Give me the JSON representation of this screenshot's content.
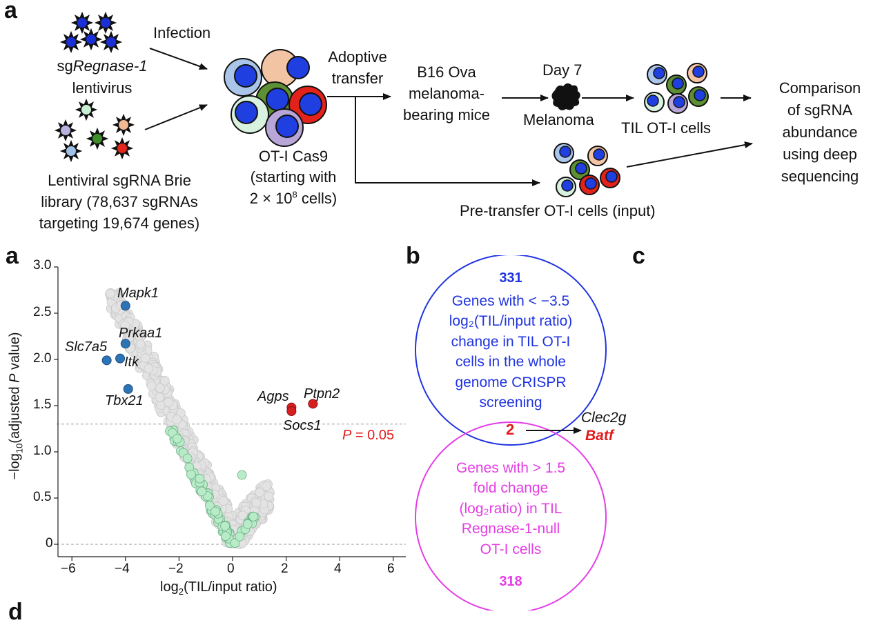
{
  "panel_letters": {
    "top": "a",
    "volcano": "a",
    "venn": "b",
    "right": "c",
    "bottom": "d"
  },
  "schematic": {
    "infection": "Infection",
    "sg_prefix": "sg",
    "sg_gene": "Regnase-1",
    "lentivirus": "lentivirus",
    "library_lines": [
      "Lentiviral sgRNA Brie",
      "library (78,637 sgRNAs",
      "targeting 19,674 genes)"
    ],
    "otI_lines": [
      "OT-I Cas9",
      "(starting with"
    ],
    "cells_count_base": "2 × 10",
    "cells_count_exp": "8",
    "cells_count_tail": " cells)",
    "adoptive_lines": [
      "Adoptive",
      "transfer"
    ],
    "mice_lines": [
      "B16 Ova",
      "melanoma-",
      "bearing mice"
    ],
    "day": "Day 7",
    "melanoma": "Melanoma",
    "til": "TIL OT-I cells",
    "pretransfer": "Pre-transfer OT-I cells (input)",
    "comparison_lines": [
      "Comparison",
      "of sgRNA",
      "abundance",
      "using deep",
      "sequencing"
    ]
  },
  "volcano": {
    "ylabel_pre": "−log",
    "ylabel_sub": "10",
    "ylabel_mid": "(adjusted ",
    "ylabel_it": "P",
    "ylabel_post": " value)",
    "xlabel_pre": "log",
    "xlabel_sub": "2",
    "xlabel_post": "(TIL/input ratio)",
    "x_ticks": [
      "−6",
      "−4",
      "−2",
      "0",
      "2",
      "4",
      "6"
    ],
    "y_ticks": [
      "0",
      "0.5",
      "1.0",
      "1.5",
      "2.0",
      "2.5",
      "3.0"
    ],
    "threshold_it": "P",
    "threshold_rest": " = 0.05",
    "genes": [
      "Mapk1",
      "Prkaa1",
      "Slc7a5",
      "Itk",
      "Tbx21",
      "Agps",
      "Ptpn2",
      "Socs1"
    ]
  },
  "chart_data": {
    "type": "scatter",
    "xlabel": "log2(TIL/input ratio)",
    "ylabel": "−log10(adjusted P value)",
    "xlim": [
      -6.5,
      6.5
    ],
    "ylim": [
      0,
      3.0
    ],
    "threshold_y": 1.3,
    "highlighted_down": [
      {
        "gene": "Mapk1",
        "x": -4.0,
        "y": 2.58
      },
      {
        "gene": "Prkaa1",
        "x": -4.0,
        "y": 2.17
      },
      {
        "gene": "Slc7a5",
        "x": -4.7,
        "y": 1.99
      },
      {
        "gene": "Itk",
        "x": -4.2,
        "y": 2.01
      },
      {
        "gene": "Tbx21",
        "x": -3.9,
        "y": 1.68
      }
    ],
    "highlighted_up": [
      {
        "gene": "Agps",
        "x": 2.2,
        "y": 1.48
      },
      {
        "gene": "Socs1",
        "x": 2.2,
        "y": 1.44
      },
      {
        "gene": "Ptpn2",
        "x": 3.0,
        "y": 1.52
      }
    ]
  },
  "venn": {
    "top_count": "331",
    "top_lines": [
      "Genes with < −3.5",
      "log₂(TIL/input ratio)",
      "change in TIL OT-I",
      "cells in the whole",
      "genome CRISPR",
      "screening"
    ],
    "overlap": "2",
    "bottom_lines": [
      "Genes with > 1.5",
      "fold change",
      "(log₂ratio) in TIL",
      "Regnase-1-null",
      "OT-I cells"
    ],
    "bottom_count": "318",
    "out_gene1": "Clec2g",
    "out_gene2": "Batf",
    "colors": {
      "blue": "#1f33e0",
      "magenta": "#e53ce6",
      "red": "#e01b1b"
    }
  }
}
